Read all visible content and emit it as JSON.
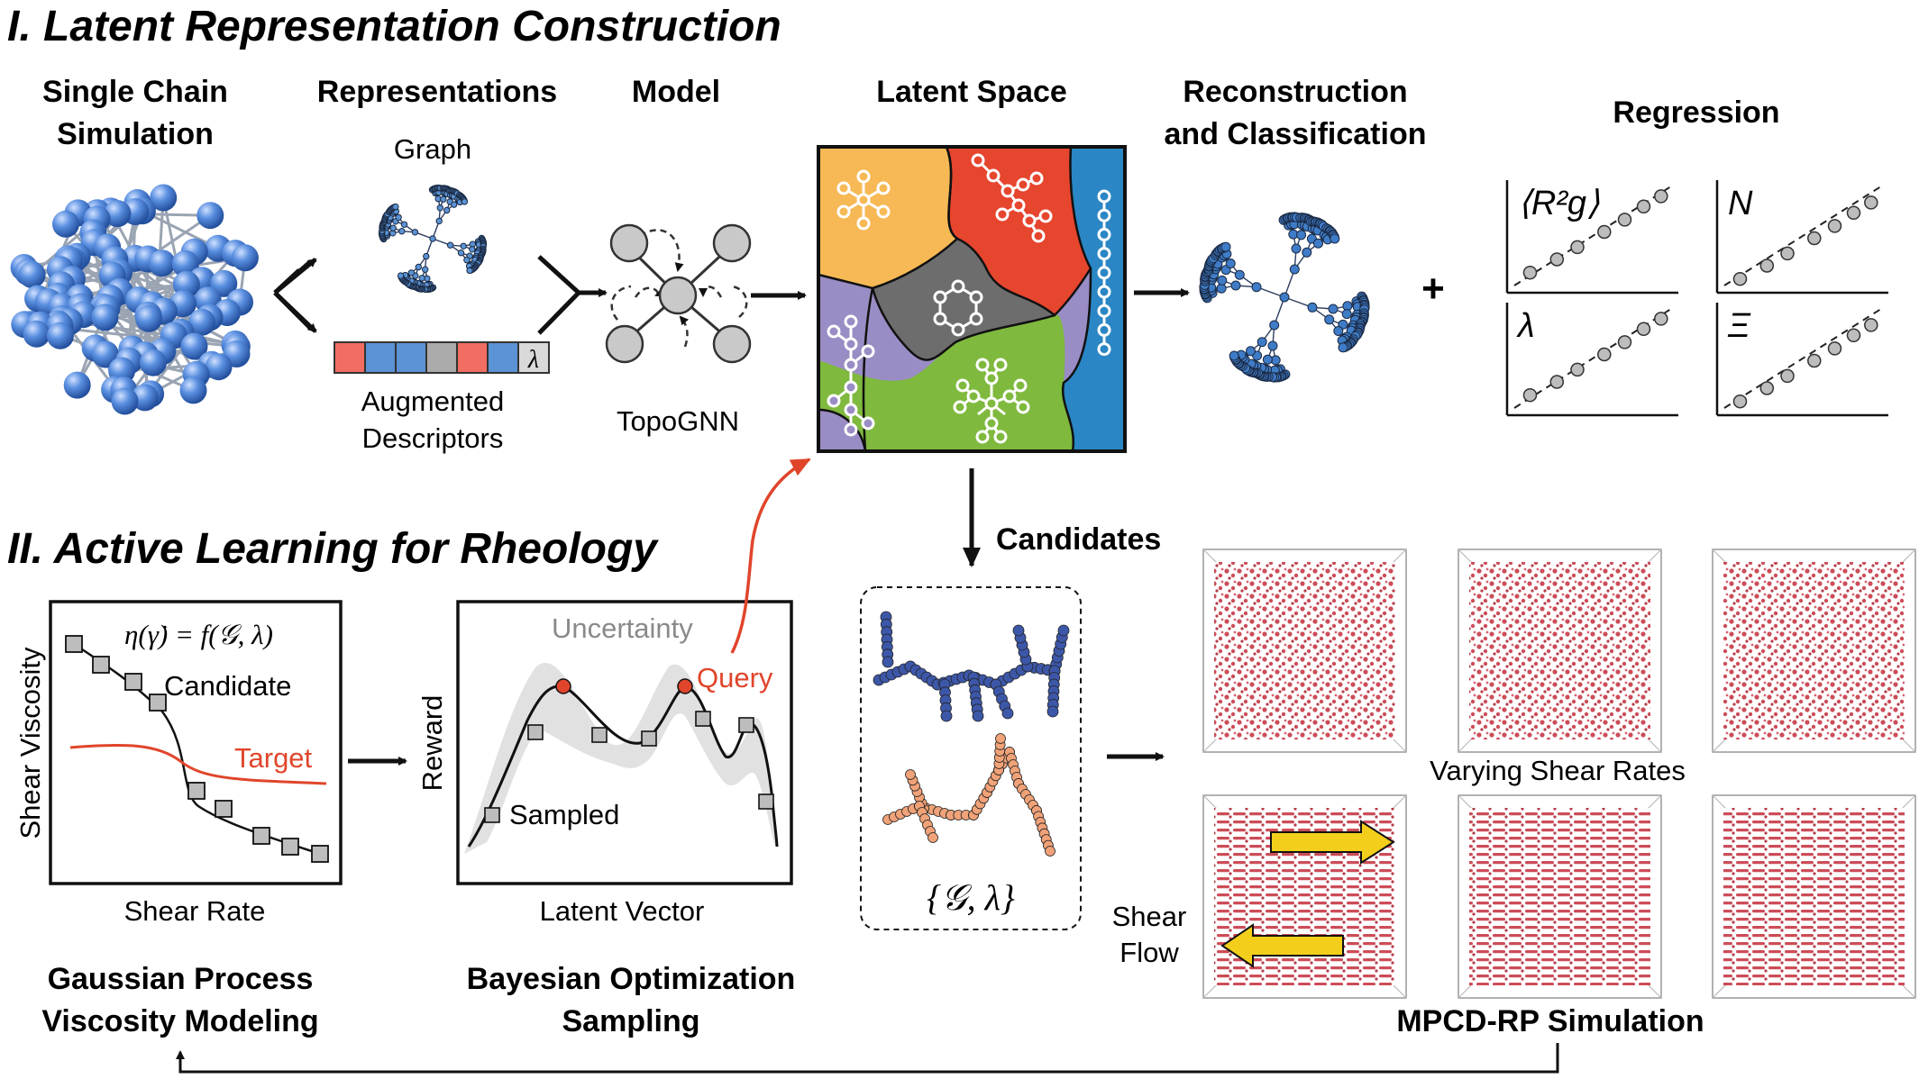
{
  "section1_title": "I. Latent Representation Construction",
  "section2_title": "II. Active Learning for Rheology",
  "headers": {
    "single_chain_1": "Single Chain",
    "single_chain_2": "Simulation",
    "representations": "Representations",
    "model": "Model",
    "latent_space": "Latent Space",
    "reconstruction_1": "Reconstruction",
    "reconstruction_2": "and Classification",
    "regression": "Regression"
  },
  "labels": {
    "graph": "Graph",
    "augmented_1": "Augmented",
    "augmented_2": "Descriptors",
    "lambda": "λ",
    "topognn": "TopoGNN",
    "plus": "+",
    "candidates": "Candidates",
    "candidates_set": "{𝒢, λ}",
    "varying_shear": "Varying Shear Rates",
    "shear_flow_1": "Shear",
    "shear_flow_2": "Flow",
    "mpcd": "MPCD-RP Simulation",
    "gp_1": "Gaussian Process",
    "gp_2": "Viscosity Modeling",
    "bo_1": "Bayesian Optimization",
    "bo_2": "Sampling"
  },
  "regression_panels": [
    "⟨R²g⟩",
    "N",
    "λ",
    "Ξ"
  ],
  "gp_panel": {
    "equation": "η(γ̇) = f(𝒢, λ)",
    "candidate": "Candidate",
    "target": "Target",
    "xlabel": "Shear Rate",
    "ylabel": "Shear Viscosity"
  },
  "bo_panel": {
    "uncertainty": "Uncertainty",
    "query": "Query",
    "sampled": "Sampled",
    "xlabel": "Latent Vector",
    "ylabel": "Reward"
  },
  "colors": {
    "accent_red": "#e0452b",
    "latent_orange": "#f7b955",
    "latent_red": "#e6452e",
    "latent_blue": "#2a86c4",
    "latent_purple": "#9a8cc4",
    "latent_gray": "#6d6d6d",
    "latent_green": "#7fb93e",
    "sphere_blue": "#4f85d2",
    "chain_blue": "#3d57a8",
    "chain_salmon": "#f0a278",
    "box_red": "#c83d4a",
    "arrow_yellow": "#f3cf1c"
  }
}
